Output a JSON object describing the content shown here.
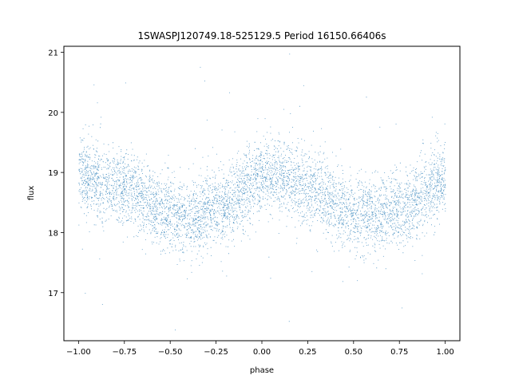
{
  "chart_data": {
    "type": "scatter",
    "title": "1SWASPJ120749.18-525129.5 Period 16150.66406s",
    "xlabel": "phase",
    "ylabel": "flux",
    "xlim": [
      -1.08,
      1.08
    ],
    "ylim": [
      16.2,
      21.1
    ],
    "xticks": [
      -1.0,
      -0.75,
      -0.5,
      -0.25,
      0.0,
      0.25,
      0.5,
      0.75,
      1.0
    ],
    "xtick_labels": [
      "−1.00",
      "−0.75",
      "−0.50",
      "−0.25",
      "0.00",
      "0.25",
      "0.50",
      "0.75",
      "1.00"
    ],
    "yticks": [
      17,
      18,
      19,
      20,
      21
    ],
    "ytick_labels": [
      "17",
      "18",
      "19",
      "20",
      "21"
    ],
    "grid": false,
    "series": [
      {
        "marker_color": "#1f77b4",
        "point_count": 18000,
        "trend": {
          "phase": [
            -1.0,
            -0.75,
            -0.5,
            -0.4,
            -0.25,
            0.0,
            0.05,
            0.25,
            0.5,
            0.6,
            0.75,
            1.0
          ],
          "flux": [
            18.95,
            18.75,
            18.3,
            18.25,
            18.4,
            18.9,
            18.95,
            18.75,
            18.3,
            18.25,
            18.4,
            18.9
          ]
        }
      }
    ]
  }
}
